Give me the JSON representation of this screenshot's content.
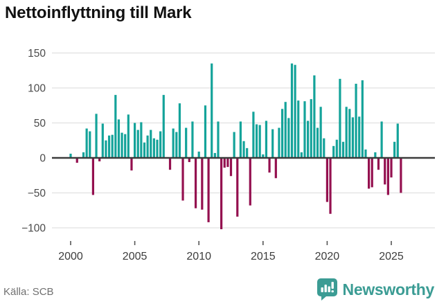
{
  "title": "Nettoinflyttning till Mark",
  "source": "Källa: SCB",
  "logo": {
    "text": "Newsworthy",
    "icon": "newsworthy-bubble-barchart-icon"
  },
  "colors": {
    "positive_bar": "#14a39a",
    "negative_bar": "#94104f",
    "gridline": "#e5e5e5",
    "zero_line": "#3b3b3b",
    "y_label": "#4a4a4a",
    "x_label": "#3c3c3c",
    "tick_mark": "#555555",
    "logo_teal": "#3b9c94"
  },
  "chart_data": {
    "type": "bar",
    "title": "Nettoinflyttning till Mark",
    "xlabel": "",
    "ylabel": "",
    "ylim": [
      -120,
      160
    ],
    "yticks": [
      150,
      100,
      50,
      0,
      -50,
      -100
    ],
    "xticks": [
      2000,
      2005,
      2010,
      2015,
      2020,
      2025
    ],
    "grid": true,
    "legend": "none",
    "frequency": "quarterly",
    "categories": [
      "2000Q1",
      "2000Q2",
      "2000Q3",
      "2000Q4",
      "2001Q1",
      "2001Q2",
      "2001Q3",
      "2001Q4",
      "2002Q1",
      "2002Q2",
      "2002Q3",
      "2002Q4",
      "2003Q1",
      "2003Q2",
      "2003Q3",
      "2003Q4",
      "2004Q1",
      "2004Q2",
      "2004Q3",
      "2004Q4",
      "2005Q1",
      "2005Q2",
      "2005Q3",
      "2005Q4",
      "2006Q1",
      "2006Q2",
      "2006Q3",
      "2006Q4",
      "2007Q1",
      "2007Q2",
      "2007Q3",
      "2007Q4",
      "2008Q1",
      "2008Q2",
      "2008Q3",
      "2008Q4",
      "2009Q1",
      "2009Q2",
      "2009Q3",
      "2009Q4",
      "2010Q1",
      "2010Q2",
      "2010Q3",
      "2010Q4",
      "2011Q1",
      "2011Q2",
      "2011Q3",
      "2011Q4",
      "2012Q1",
      "2012Q2",
      "2012Q3",
      "2012Q4",
      "2013Q1",
      "2013Q2",
      "2013Q3",
      "2013Q4",
      "2014Q1",
      "2014Q2",
      "2014Q3",
      "2014Q4",
      "2015Q1",
      "2015Q2",
      "2015Q3",
      "2015Q4",
      "2016Q1",
      "2016Q2",
      "2016Q3",
      "2016Q4",
      "2017Q1",
      "2017Q2",
      "2017Q3",
      "2017Q4",
      "2018Q1",
      "2018Q2",
      "2018Q3",
      "2018Q4",
      "2019Q1",
      "2019Q2",
      "2019Q3",
      "2019Q4",
      "2020Q1",
      "2020Q2",
      "2020Q3",
      "2020Q4",
      "2021Q1",
      "2021Q2",
      "2021Q3",
      "2021Q4",
      "2022Q1",
      "2022Q2",
      "2022Q3",
      "2022Q4",
      "2023Q1",
      "2023Q2",
      "2023Q3",
      "2023Q4",
      "2024Q1",
      "2024Q2",
      "2024Q3",
      "2024Q4",
      "2025Q1",
      "2025Q2",
      "2025Q3",
      "2025Q4"
    ],
    "values": [
      6,
      0,
      -6,
      0,
      8,
      42,
      38,
      -52,
      63,
      -4,
      49,
      25,
      32,
      33,
      90,
      55,
      36,
      34,
      62,
      -17,
      50,
      40,
      51,
      22,
      32,
      40,
      28,
      26,
      38,
      90,
      0,
      -16,
      42,
      37,
      78,
      -60,
      43,
      -5,
      52,
      -71,
      9,
      -73,
      75,
      -91,
      135,
      7,
      52,
      -101,
      -13,
      -12,
      -25,
      37,
      -83,
      52,
      24,
      14,
      -67,
      66,
      48,
      47,
      5,
      53,
      -20,
      41,
      -28,
      43,
      70,
      80,
      57,
      135,
      133,
      82,
      8,
      81,
      53,
      84,
      118,
      43,
      73,
      28,
      -62,
      -79,
      17,
      26,
      113,
      23,
      73,
      70,
      58,
      106,
      59,
      111,
      12,
      -43,
      -41,
      8,
      -16,
      52,
      -37,
      -52,
      -27,
      23,
      49,
      -49
    ]
  }
}
